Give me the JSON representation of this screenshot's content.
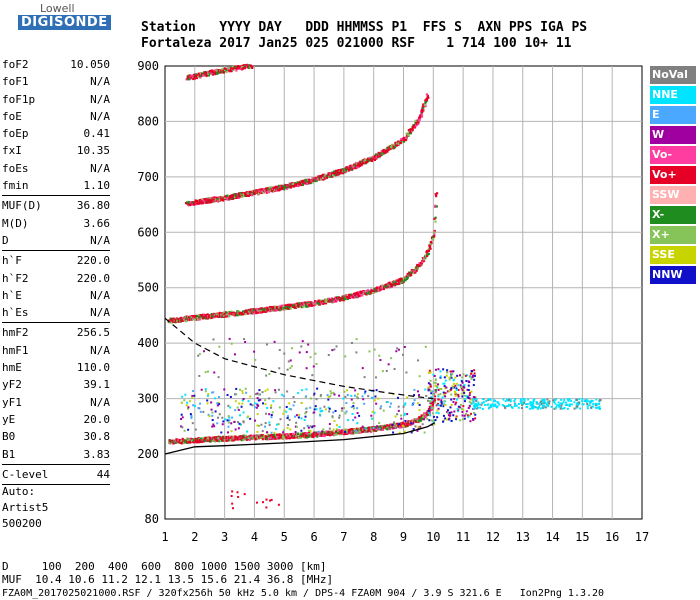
{
  "logo": {
    "line1": "Lowell",
    "line2": "DIGISONDE"
  },
  "header": {
    "line1": "Station   YYYY DAY   DDD HHMMSS P1  FFS S  AXN PPS IGA PS",
    "line2": "Fortaleza 2017 Jan25 025 021000 RSF    1 714 100 10+ 11"
  },
  "params": {
    "group1": [
      {
        "k": "foF2",
        "v": "10.050"
      },
      {
        "k": "foF1",
        "v": "N/A"
      },
      {
        "k": "foF1p",
        "v": "N/A"
      },
      {
        "k": "foE",
        "v": "N/A"
      },
      {
        "k": "foEp",
        "v": "0.41"
      },
      {
        "k": "fxI",
        "v": "10.35"
      },
      {
        "k": "foEs",
        "v": "N/A"
      },
      {
        "k": "fmin",
        "v": "1.10"
      }
    ],
    "group2": [
      {
        "k": "MUF(D)",
        "v": "36.80"
      },
      {
        "k": "M(D)",
        "v": "3.66"
      },
      {
        "k": "D",
        "v": "N/A"
      }
    ],
    "group3": [
      {
        "k": "h`F",
        "v": "220.0"
      },
      {
        "k": "h`F2",
        "v": "220.0"
      },
      {
        "k": "h`E",
        "v": "N/A"
      },
      {
        "k": "h`Es",
        "v": "N/A"
      }
    ],
    "group4": [
      {
        "k": "hmF2",
        "v": "256.5"
      },
      {
        "k": "hmF1",
        "v": "N/A"
      },
      {
        "k": "hmE",
        "v": "110.0"
      },
      {
        "k": "yF2",
        "v": "39.1"
      },
      {
        "k": "yF1",
        "v": "N/A"
      },
      {
        "k": "yE",
        "v": "20.0"
      },
      {
        "k": "B0",
        "v": "30.8"
      },
      {
        "k": "B1",
        "v": "3.83"
      }
    ],
    "clevel": {
      "k": "C-level",
      "v": "44"
    }
  },
  "auto": {
    "line1": "Auto:",
    "line2": "Artist5",
    "line3": "500200"
  },
  "legend": [
    {
      "label": "NoVal",
      "color": "#808080"
    },
    {
      "label": "NNE",
      "color": "#00e5ff"
    },
    {
      "label": "E",
      "color": "#4aa8ff"
    },
    {
      "label": "W",
      "color": "#a000a0"
    },
    {
      "label": "Vo-",
      "color": "#ff3ca0"
    },
    {
      "label": "Vo+",
      "color": "#e60026"
    },
    {
      "label": "SSW",
      "color": "#ffb0b0"
    },
    {
      "label": "X-",
      "color": "#1e8c1e"
    },
    {
      "label": "X+",
      "color": "#86c45a"
    },
    {
      "label": "SSE",
      "color": "#c8d400"
    },
    {
      "label": "NNW",
      "color": "#1010c8"
    }
  ],
  "footer": {
    "line1": "D     100  200  400  600  800 1000 1500 3000 [km]",
    "line2": "MUF  10.4 10.6 11.2 12.1 13.5 15.6 21.4 36.8 [MHz]",
    "line3": "FZA0M_2017025021000.RSF / 320fx256h 50 kHz 5.0 km / DPS-4 FZA0M 904 / 3.9 S 321.6 E   Ion2Png 1.3.20"
  },
  "chart_data": {
    "type": "scatter",
    "title": "",
    "xlabel": "",
    "ylabel": "",
    "xlim": [
      1,
      17
    ],
    "ylim": [
      80,
      900
    ],
    "y_axis_scale": "piecewise: 80-200 compressed, 200-900 linear",
    "grid": true,
    "x_ticks": [
      "1",
      "2",
      "3",
      "4",
      "5",
      "6",
      "7",
      "8",
      "9",
      "10",
      "11",
      "12",
      "13",
      "14",
      "15",
      "16",
      "17"
    ],
    "y_ticks": [
      "80",
      "200",
      "300",
      "400",
      "500",
      "600",
      "700",
      "800",
      "900"
    ],
    "traces": [
      {
        "name": "O trace 1st hop",
        "x": [
          1.1,
          2,
          3,
          4,
          5,
          6,
          7,
          8,
          9,
          9.5,
          9.8,
          10,
          10.05
        ],
        "y": [
          222,
          225,
          228,
          230,
          232,
          235,
          240,
          245,
          253,
          262,
          275,
          295,
          330
        ]
      },
      {
        "name": "O trace 2nd hop",
        "x": [
          1.1,
          2,
          3,
          4,
          5,
          6,
          7,
          8,
          9,
          9.5,
          9.8,
          10,
          10.1
        ],
        "y": [
          440,
          446,
          452,
          458,
          465,
          472,
          482,
          495,
          515,
          540,
          565,
          600,
          690
        ]
      },
      {
        "name": "O trace 3rd hop",
        "x": [
          1.7,
          3,
          4,
          5,
          6,
          7,
          8,
          9,
          9.5,
          9.8
        ],
        "y": [
          652,
          662,
          672,
          682,
          695,
          712,
          735,
          768,
          805,
          850
        ]
      },
      {
        "name": "O trace 4th hop",
        "x": [
          1.7,
          2.5,
          3,
          3.5,
          3.9
        ],
        "y": [
          878,
          888,
          893,
          897,
          900
        ]
      },
      {
        "name": "Es diffuse echoes",
        "x": [
          1.5,
          4,
          8,
          9.5,
          10
        ],
        "y": [
          290,
          296,
          300,
          300,
          300
        ]
      },
      {
        "name": "spread echoes",
        "x": [
          11.5,
          13,
          14,
          15,
          15.5
        ],
        "y": [
          292,
          293,
          292,
          291,
          292
        ]
      }
    ],
    "profile": {
      "name": "true height profile",
      "x": [
        1,
        2,
        3,
        5,
        7,
        9,
        9.8,
        10.05
      ],
      "y": [
        200,
        213,
        215,
        220,
        226,
        237,
        249,
        256.5
      ]
    },
    "model_curve": {
      "name": "dashed curve",
      "x": [
        1,
        2,
        3,
        5,
        7,
        8.5,
        9.5,
        10
      ],
      "y": [
        445,
        400,
        372,
        343,
        322,
        310,
        303,
        300
      ]
    }
  }
}
